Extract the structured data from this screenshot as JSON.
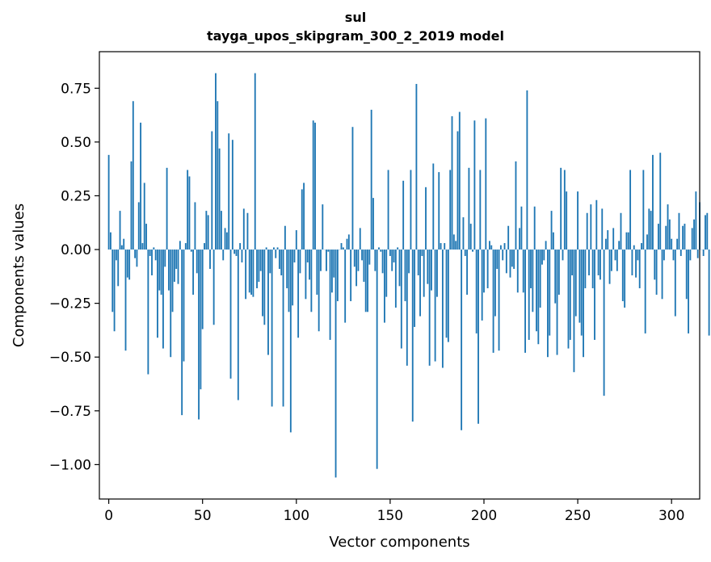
{
  "chart_data": {
    "type": "bar",
    "title": "sul",
    "subtitle": "tayga_upos_skipgram_300_2_2019 model",
    "xlabel": "Vector components",
    "ylabel": "Components values",
    "xlim": [
      -5,
      315
    ],
    "ylim": [
      -1.16,
      0.92
    ],
    "xticks": [
      0,
      50,
      100,
      150,
      200,
      250,
      300
    ],
    "xtick_labels": [
      "0",
      "50",
      "100",
      "150",
      "200",
      "250",
      "300"
    ],
    "yticks": [
      0.75,
      0.5,
      0.25,
      0.0,
      -0.25,
      -0.5,
      -0.75,
      -1.0
    ],
    "ytick_labels": [
      "0.75",
      "0.50",
      "0.25",
      "0.00",
      "−0.25",
      "−0.50",
      "−0.75",
      "−1.00"
    ],
    "bar_color": "#1f77b4",
    "grid": false,
    "values": [
      0.44,
      0.08,
      -0.29,
      -0.38,
      -0.05,
      -0.17,
      0.18,
      0.02,
      0.05,
      -0.47,
      -0.13,
      -0.14,
      0.41,
      0.69,
      -0.04,
      -0.08,
      0.22,
      0.59,
      0.03,
      0.31,
      0.12,
      -0.58,
      -0.03,
      -0.12,
      0.01,
      -0.05,
      -0.41,
      -0.19,
      -0.21,
      -0.46,
      -0.08,
      0.38,
      -0.19,
      -0.5,
      -0.29,
      -0.15,
      -0.09,
      -0.16,
      0.04,
      -0.77,
      -0.52,
      0.03,
      0.37,
      0.34,
      -0.01,
      -0.21,
      0.22,
      -0.11,
      -0.79,
      -0.65,
      -0.37,
      0.03,
      0.18,
      0.16,
      -0.09,
      0.55,
      -0.35,
      0.82,
      0.69,
      0.47,
      0.18,
      -0.05,
      0.1,
      0.08,
      0.54,
      -0.6,
      0.51,
      -0.02,
      -0.03,
      -0.7,
      0.03,
      -0.06,
      0.19,
      -0.23,
      0.17,
      -0.2,
      -0.21,
      -0.22,
      0.82,
      -0.18,
      -0.15,
      -0.1,
      -0.31,
      -0.35,
      0.01,
      -0.49,
      -0.11,
      -0.73,
      0.01,
      -0.04,
      0.01,
      -0.09,
      -0.12,
      -0.73,
      0.11,
      -0.18,
      -0.29,
      -0.85,
      -0.26,
      -0.06,
      0.09,
      -0.41,
      -0.11,
      0.28,
      0.31,
      -0.23,
      -0.06,
      -0.14,
      -0.29,
      0.6,
      0.59,
      -0.21,
      -0.38,
      -0.1,
      0.21,
      0.0,
      -0.1,
      -0.01,
      -0.42,
      -0.2,
      -0.13,
      -1.06,
      -0.24,
      0.0,
      0.03,
      0.01,
      -0.34,
      0.05,
      0.07,
      -0.24,
      0.57,
      -0.08,
      -0.17,
      -0.1,
      0.1,
      -0.05,
      -0.15,
      -0.29,
      -0.29,
      -0.07,
      0.65,
      0.24,
      -0.1,
      -1.02,
      0.01,
      -0.01,
      -0.11,
      -0.34,
      -0.22,
      0.37,
      -0.03,
      -0.1,
      -0.06,
      -0.27,
      0.01,
      -0.17,
      -0.46,
      0.32,
      -0.24,
      -0.54,
      -0.11,
      0.37,
      -0.8,
      -0.36,
      0.77,
      -0.12,
      -0.31,
      -0.03,
      -0.22,
      0.29,
      -0.16,
      -0.54,
      -0.19,
      0.4,
      -0.52,
      -0.22,
      0.36,
      0.03,
      -0.55,
      0.03,
      -0.41,
      -0.43,
      0.37,
      0.62,
      0.07,
      0.04,
      0.55,
      0.64,
      -0.84,
      0.15,
      -0.03,
      -0.21,
      0.38,
      0.12,
      -0.01,
      0.6,
      -0.39,
      -0.81,
      0.37,
      -0.33,
      -0.2,
      0.61,
      -0.18,
      0.04,
      0.02,
      -0.48,
      -0.31,
      -0.09,
      -0.47,
      0.02,
      -0.05,
      0.03,
      -0.11,
      0.11,
      -0.13,
      -0.08,
      -0.09,
      0.41,
      -0.2,
      0.1,
      0.2,
      -0.2,
      -0.48,
      0.74,
      -0.42,
      -0.18,
      -0.29,
      0.2,
      -0.38,
      -0.44,
      -0.27,
      -0.07,
      -0.05,
      0.04,
      -0.5,
      -0.4,
      0.18,
      0.08,
      -0.25,
      -0.49,
      -0.21,
      0.38,
      -0.05,
      0.37,
      0.27,
      -0.46,
      -0.42,
      -0.12,
      -0.57,
      -0.31,
      0.27,
      -0.34,
      -0.4,
      -0.5,
      -0.18,
      0.17,
      -0.12,
      0.21,
      -0.18,
      -0.42,
      0.23,
      -0.12,
      -0.14,
      0.19,
      -0.68,
      0.05,
      0.09,
      -0.16,
      -0.1,
      0.1,
      -0.05,
      -0.1,
      0.04,
      0.17,
      -0.24,
      -0.27,
      0.08,
      0.08,
      0.37,
      -0.12,
      0.02,
      -0.13,
      -0.05,
      -0.18,
      0.03,
      0.37,
      -0.39,
      0.07,
      0.19,
      0.18,
      0.44,
      -0.14,
      -0.21,
      0.12,
      0.45,
      -0.23,
      -0.05,
      0.11,
      0.21,
      0.14,
      0.05,
      -0.05,
      -0.31,
      0.05,
      0.17,
      -0.03,
      0.11,
      0.12,
      -0.23,
      -0.39,
      -0.05,
      0.1,
      0.14,
      0.27,
      -0.04,
      0.22,
      0.0,
      -0.03,
      0.16,
      0.17,
      -0.4
    ]
  }
}
